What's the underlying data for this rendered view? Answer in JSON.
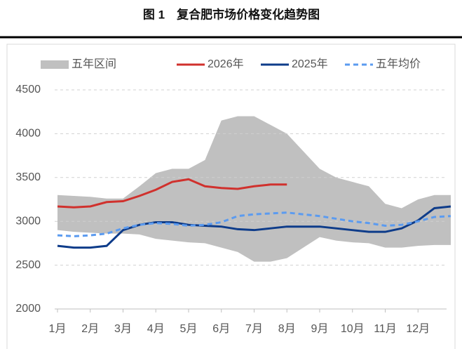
{
  "chart_data": {
    "type": "line",
    "title": "图 1　复合肥市场价格变化趋势图",
    "x": [
      1,
      1.5,
      2,
      2.5,
      3,
      3.5,
      4,
      4.5,
      5,
      5.5,
      6,
      6.5,
      7,
      7.5,
      8,
      8.5,
      9,
      9.5,
      10,
      10.5,
      11,
      11.5,
      12,
      12.5,
      13
    ],
    "xlim": [
      1,
      13
    ],
    "xticks": [
      {
        "value": 1,
        "label": "1月"
      },
      {
        "value": 2,
        "label": "2月"
      },
      {
        "value": 3,
        "label": "3月"
      },
      {
        "value": 4,
        "label": "4月"
      },
      {
        "value": 5,
        "label": "5月"
      },
      {
        "value": 6,
        "label": "6月"
      },
      {
        "value": 7,
        "label": "7月"
      },
      {
        "value": 8,
        "label": "8月"
      },
      {
        "value": 9,
        "label": "9月"
      },
      {
        "value": 10,
        "label": "10月"
      },
      {
        "value": 11,
        "label": "11月"
      },
      {
        "value": 12,
        "label": "12月"
      }
    ],
    "ylim": [
      2000,
      4500
    ],
    "yticks": [
      2000,
      2500,
      3000,
      3500,
      4000,
      4500
    ],
    "grid": true,
    "band": {
      "name": "五年区间",
      "color": "#c0c0c0",
      "high": [
        3300,
        3290,
        3280,
        3260,
        3260,
        3400,
        3550,
        3600,
        3600,
        3700,
        4150,
        4200,
        4200,
        4100,
        4000,
        3800,
        3600,
        3500,
        3450,
        3400,
        3200,
        3150,
        3250,
        3300,
        3300
      ],
      "low": [
        2900,
        2880,
        2870,
        2860,
        2860,
        2850,
        2800,
        2780,
        2760,
        2750,
        2700,
        2650,
        2540,
        2540,
        2580,
        2700,
        2820,
        2780,
        2760,
        2750,
        2700,
        2700,
        2720,
        2730,
        2730
      ]
    },
    "series": [
      {
        "name": "2026年",
        "color": "#d0312d",
        "dash": false,
        "values": [
          3170,
          3160,
          3170,
          3220,
          3230,
          3290,
          3360,
          3450,
          3480,
          3400,
          3380,
          3370,
          3400,
          3420,
          3420,
          null,
          null,
          null,
          null,
          null,
          null,
          null,
          null,
          null,
          null
        ]
      },
      {
        "name": "2025年",
        "color": "#0e3c8a",
        "dash": false,
        "values": [
          2720,
          2700,
          2700,
          2720,
          2900,
          2960,
          2990,
          2990,
          2960,
          2950,
          2940,
          2910,
          2900,
          2920,
          2940,
          2940,
          2940,
          2920,
          2900,
          2880,
          2880,
          2920,
          3010,
          3150,
          3170
        ]
      },
      {
        "name": "五年均价",
        "color": "#5b9bf0",
        "dash": true,
        "values": [
          2840,
          2830,
          2840,
          2860,
          2920,
          2960,
          2980,
          2970,
          2950,
          2960,
          2990,
          3060,
          3080,
          3090,
          3100,
          3080,
          3060,
          3030,
          3000,
          2980,
          2950,
          2960,
          3000,
          3050,
          3060
        ]
      }
    ]
  }
}
